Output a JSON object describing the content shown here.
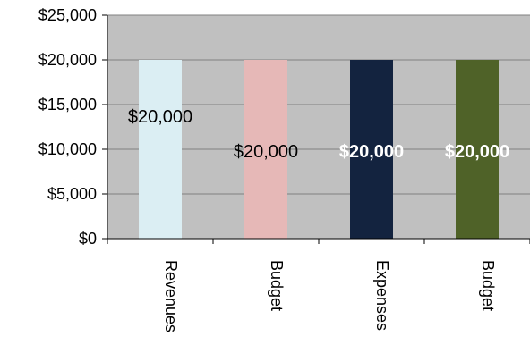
{
  "chart_data": {
    "type": "bar",
    "title": "",
    "xlabel": "",
    "ylabel": "",
    "categories": [
      "Revenues",
      "Budget",
      "Expenses",
      "Budget"
    ],
    "values": [
      20000,
      20000,
      20000,
      20000
    ],
    "value_labels": [
      "$20,000",
      "$20,000",
      "$20,000",
      "$20,000"
    ],
    "bar_colors": [
      "#dbeef3",
      "#e6b8b7",
      "#13233f",
      "#4f6228"
    ],
    "label_colors": [
      "dark",
      "dark",
      "light",
      "light"
    ],
    "ylim": [
      0,
      25000
    ],
    "y_ticks": [
      0,
      5000,
      10000,
      15000,
      20000,
      25000
    ],
    "y_tick_labels": [
      "$0",
      "$5,000",
      "$10,000",
      "$15,000",
      "$20,000",
      "$25,000"
    ],
    "plot_background": "#c0c0c0",
    "grid": true,
    "gridline_color": "#808080",
    "legend": "none"
  }
}
